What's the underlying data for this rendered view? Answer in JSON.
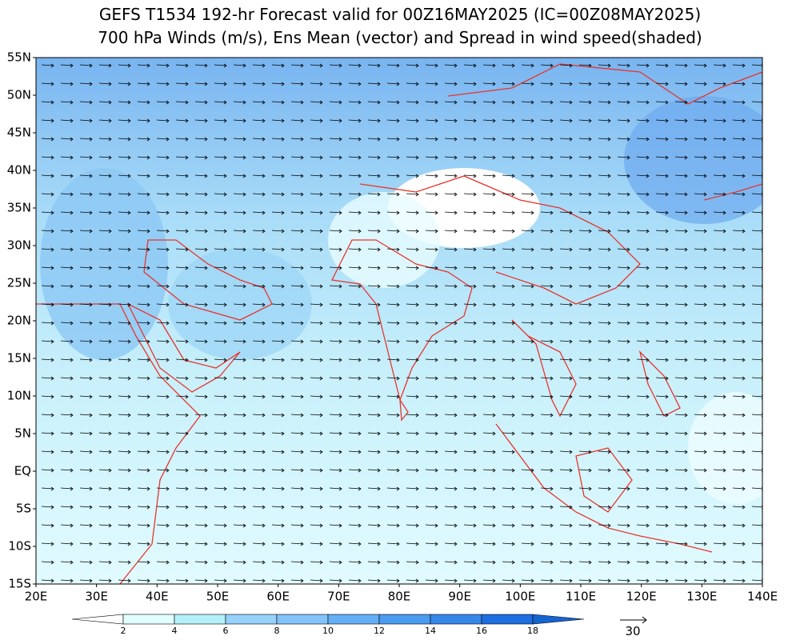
{
  "header": {
    "title_lines": [
      "GEFS T1534 192-hr Forecast valid for 00Z16MAY2025 (IC=00Z08MAY2025)",
      "700 hPa Winds (m/s), Ens Mean (vector) and Spread in wind speed(shaded)"
    ]
  },
  "map": {
    "lat_labels": [
      "55N",
      "50N",
      "45N",
      "40N",
      "35N",
      "30N",
      "25N",
      "20N",
      "15N",
      "10N",
      "5N",
      "EQ",
      "5S",
      "10S",
      "15S"
    ],
    "lon_labels": [
      "20E",
      "30E",
      "40E",
      "50E",
      "60E",
      "70E",
      "80E",
      "90E",
      "100E",
      "110E",
      "120E",
      "130E",
      "140E"
    ]
  },
  "colorbar": {
    "labels": [
      2,
      4,
      6,
      8,
      10,
      12,
      14,
      16,
      18
    ],
    "colors": [
      "#ffffff",
      "#e1ffff",
      "#b4f0fa",
      "#96d2fa",
      "#82c3fa",
      "#64aff5",
      "#4b9bf0",
      "#3787eb",
      "#1e6ee1",
      "#1464d2"
    ]
  },
  "vector_key": {
    "label": "30"
  }
}
